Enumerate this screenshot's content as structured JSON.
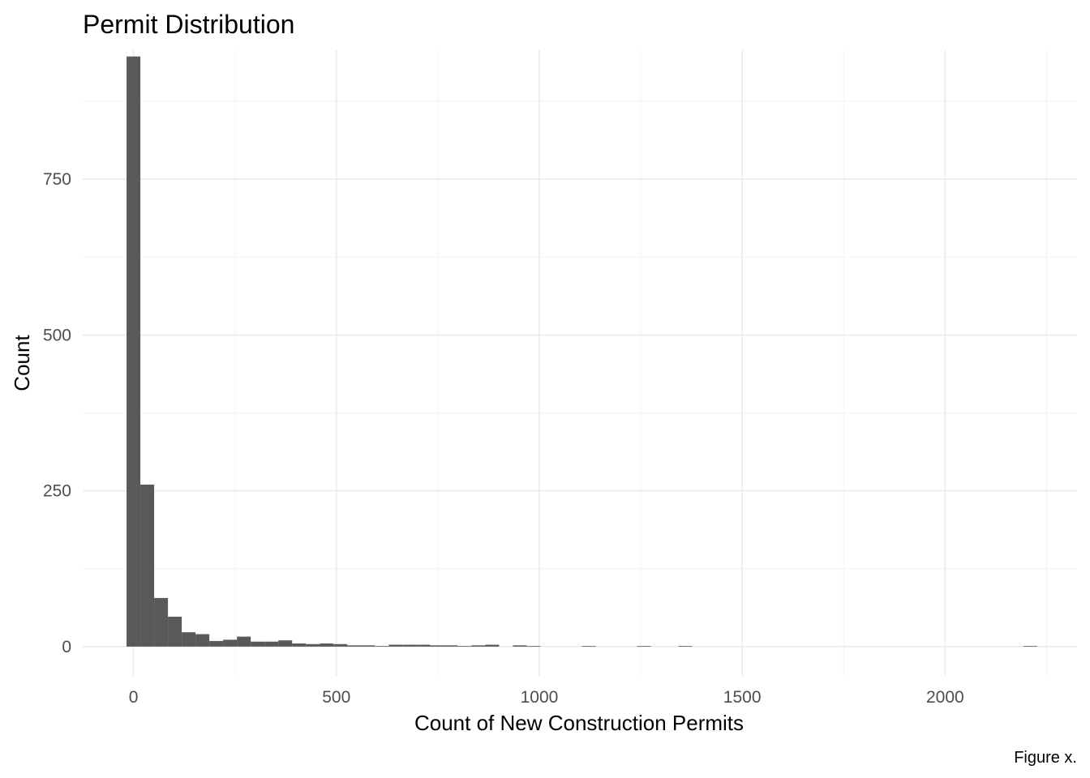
{
  "chart_data": {
    "type": "bar",
    "title": "Permit Distribution",
    "xlabel": "Count of New Construction Permits",
    "ylabel": "Count",
    "caption": "Figure x.",
    "xlim": [
      -125,
      2325
    ],
    "ylim": [
      -47,
      957
    ],
    "x_major_ticks": [
      0,
      500,
      1000,
      1500,
      2000
    ],
    "x_minor_ticks": [
      250,
      750,
      1250,
      1750,
      2250
    ],
    "y_major_ticks": [
      0,
      250,
      500,
      750
    ],
    "y_minor_ticks": [
      125,
      375,
      625,
      875
    ],
    "x_tick_labels": [
      "0",
      "500",
      "1000",
      "1500",
      "2000"
    ],
    "y_tick_labels": [
      "0",
      "250",
      "500",
      "750"
    ],
    "bin_width": 34,
    "bins": [
      {
        "x0": -17,
        "x1": 17,
        "count": 947
      },
      {
        "x0": 17,
        "x1": 51,
        "count": 260
      },
      {
        "x0": 51,
        "x1": 85,
        "count": 78
      },
      {
        "x0": 85,
        "x1": 119,
        "count": 48
      },
      {
        "x0": 119,
        "x1": 153,
        "count": 23
      },
      {
        "x0": 153,
        "x1": 187,
        "count": 20
      },
      {
        "x0": 187,
        "x1": 221,
        "count": 9
      },
      {
        "x0": 221,
        "x1": 255,
        "count": 11
      },
      {
        "x0": 255,
        "x1": 289,
        "count": 16
      },
      {
        "x0": 289,
        "x1": 323,
        "count": 8
      },
      {
        "x0": 323,
        "x1": 357,
        "count": 8
      },
      {
        "x0": 357,
        "x1": 391,
        "count": 10
      },
      {
        "x0": 391,
        "x1": 425,
        "count": 5
      },
      {
        "x0": 425,
        "x1": 459,
        "count": 4
      },
      {
        "x0": 459,
        "x1": 493,
        "count": 5
      },
      {
        "x0": 493,
        "x1": 527,
        "count": 4
      },
      {
        "x0": 527,
        "x1": 561,
        "count": 2
      },
      {
        "x0": 561,
        "x1": 595,
        "count": 2
      },
      {
        "x0": 595,
        "x1": 629,
        "count": 1
      },
      {
        "x0": 629,
        "x1": 663,
        "count": 3
      },
      {
        "x0": 663,
        "x1": 697,
        "count": 3
      },
      {
        "x0": 697,
        "x1": 731,
        "count": 3
      },
      {
        "x0": 731,
        "x1": 765,
        "count": 2
      },
      {
        "x0": 765,
        "x1": 799,
        "count": 2
      },
      {
        "x0": 799,
        "x1": 833,
        "count": 1
      },
      {
        "x0": 833,
        "x1": 867,
        "count": 2
      },
      {
        "x0": 867,
        "x1": 901,
        "count": 3
      },
      {
        "x0": 901,
        "x1": 935,
        "count": 0
      },
      {
        "x0": 935,
        "x1": 969,
        "count": 2
      },
      {
        "x0": 969,
        "x1": 1003,
        "count": 1
      },
      {
        "x0": 1105,
        "x1": 1139,
        "count": 1
      },
      {
        "x0": 1241,
        "x1": 1275,
        "count": 1
      },
      {
        "x0": 1343,
        "x1": 1377,
        "count": 1
      },
      {
        "x0": 2193,
        "x1": 2227,
        "count": 1
      }
    ]
  }
}
